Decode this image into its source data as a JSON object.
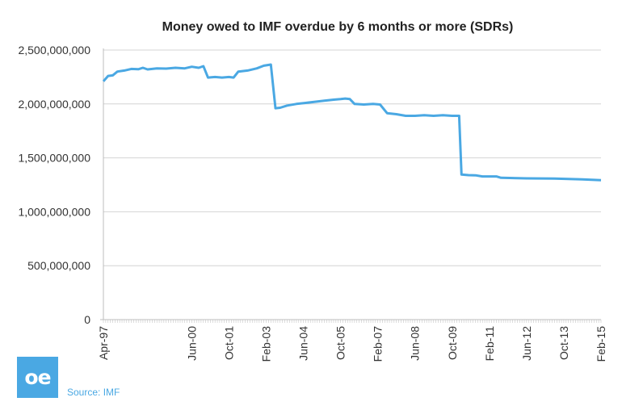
{
  "branding": {
    "logo_text": "oe",
    "source": "Source: IMF",
    "accent": "#4aa8e3"
  },
  "chart_data": {
    "type": "line",
    "title": "Money owed to IMF overdue by 6 months or more (SDRs)",
    "xlabel": "",
    "ylabel": "",
    "ylim": [
      0,
      2500000000
    ],
    "yticks": [
      0,
      500000000,
      1000000000,
      1500000000,
      2000000000,
      2500000000
    ],
    "ytick_labels": [
      "0",
      "500,000,000",
      "1,000,000,000",
      "1,500,000,000",
      "2,000,000,000",
      "2,500,000,000"
    ],
    "x_start": "Apr-97",
    "x_end": "Feb-15",
    "xtick_labels": [
      "Apr-97",
      "Jun-00",
      "Oct-01",
      "Feb-03",
      "Jun-04",
      "Oct-05",
      "Feb-07",
      "Jun-08",
      "Oct-09",
      "Feb-11",
      "Jun-12",
      "Oct-13",
      "Feb-15"
    ],
    "grid": true,
    "legend": "none",
    "series": [
      {
        "name": "Overdue by 6 months or more",
        "color": "#4aa8e3",
        "points": [
          [
            "Apr-97",
            2210000000
          ],
          [
            "Jun-97",
            2260000000
          ],
          [
            "Aug-97",
            2265000000
          ],
          [
            "Oct-97",
            2300000000
          ],
          [
            "Jan-98",
            2310000000
          ],
          [
            "Apr-98",
            2325000000
          ],
          [
            "Jul-98",
            2322000000
          ],
          [
            "Sep-98",
            2335000000
          ],
          [
            "Nov-98",
            2320000000
          ],
          [
            "Mar-99",
            2330000000
          ],
          [
            "Jul-99",
            2328000000
          ],
          [
            "Nov-99",
            2335000000
          ],
          [
            "Mar-00",
            2330000000
          ],
          [
            "Jun-00",
            2345000000
          ],
          [
            "Sep-00",
            2335000000
          ],
          [
            "Nov-00",
            2350000000
          ],
          [
            "Jan-01",
            2245000000
          ],
          [
            "Apr-01",
            2250000000
          ],
          [
            "Jul-01",
            2245000000
          ],
          [
            "Oct-01",
            2250000000
          ],
          [
            "Dec-01",
            2245000000
          ],
          [
            "Feb-02",
            2300000000
          ],
          [
            "Jun-02",
            2310000000
          ],
          [
            "Oct-02",
            2330000000
          ],
          [
            "Jan-03",
            2355000000
          ],
          [
            "Apr-03",
            2365000000
          ],
          [
            "Jun-03",
            1960000000
          ],
          [
            "Aug-03",
            1965000000
          ],
          [
            "Nov-03",
            1985000000
          ],
          [
            "Mar-04",
            2000000000
          ],
          [
            "Jul-04",
            2010000000
          ],
          [
            "Nov-04",
            2020000000
          ],
          [
            "Mar-05",
            2030000000
          ],
          [
            "Jul-05",
            2040000000
          ],
          [
            "Oct-05",
            2045000000
          ],
          [
            "Dec-05",
            2050000000
          ],
          [
            "Feb-06",
            2045000000
          ],
          [
            "Apr-06",
            2000000000
          ],
          [
            "Aug-06",
            1995000000
          ],
          [
            "Dec-06",
            2000000000
          ],
          [
            "Mar-07",
            1995000000
          ],
          [
            "Jun-07",
            1915000000
          ],
          [
            "Oct-07",
            1905000000
          ],
          [
            "Feb-08",
            1890000000
          ],
          [
            "Jun-08",
            1890000000
          ],
          [
            "Oct-08",
            1895000000
          ],
          [
            "Feb-09",
            1890000000
          ],
          [
            "Jun-09",
            1895000000
          ],
          [
            "Oct-09",
            1890000000
          ],
          [
            "Jan-10",
            1890000000
          ],
          [
            "Feb-10",
            1345000000
          ],
          [
            "May-10",
            1340000000
          ],
          [
            "Aug-10",
            1338000000
          ],
          [
            "Nov-10",
            1328000000
          ],
          [
            "May-11",
            1328000000
          ],
          [
            "Jul-11",
            1315000000
          ],
          [
            "Jun-12",
            1310000000
          ],
          [
            "Jun-13",
            1308000000
          ],
          [
            "Jun-14",
            1300000000
          ],
          [
            "Feb-15",
            1293000000
          ]
        ]
      }
    ]
  }
}
